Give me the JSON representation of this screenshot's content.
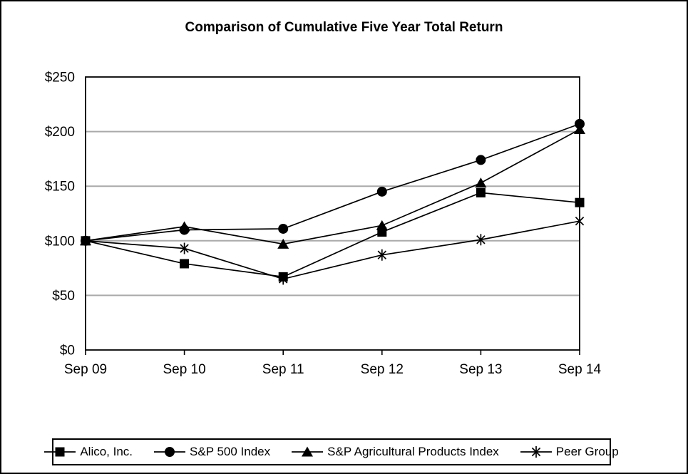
{
  "chart_data": {
    "type": "line",
    "title": "Comparison of Cumulative Five Year Total Return",
    "x_labels": [
      "Sep 09",
      "Sep 10",
      "Sep 11",
      "Sep 12",
      "Sep 13",
      "Sep 14"
    ],
    "ylim": [
      0,
      250
    ],
    "y_tick_step": 50,
    "y_tick_prefix": "$",
    "y_tick_labels": [
      "$0",
      "$50",
      "$100",
      "$150",
      "$200",
      "$250"
    ],
    "grid": true,
    "legend_position": "bottom",
    "series": [
      {
        "name": "Alico, Inc.",
        "marker": "square",
        "values": [
          100,
          79,
          67,
          108,
          144,
          135
        ]
      },
      {
        "name": "S&P 500 Index",
        "marker": "circle",
        "values": [
          100,
          110,
          111,
          145,
          174,
          207
        ]
      },
      {
        "name": "S&P Agricultural Products Index",
        "marker": "triangle",
        "values": [
          100,
          113,
          97,
          114,
          153,
          202
        ]
      },
      {
        "name": "Peer Group",
        "marker": "asterisk",
        "values": [
          100,
          93,
          65,
          87,
          101,
          118
        ]
      }
    ],
    "colors": {
      "series": "#000000",
      "gridline": "#aaaaaa",
      "axis": "#000000",
      "background": "#ffffff",
      "border": "#000000"
    }
  }
}
